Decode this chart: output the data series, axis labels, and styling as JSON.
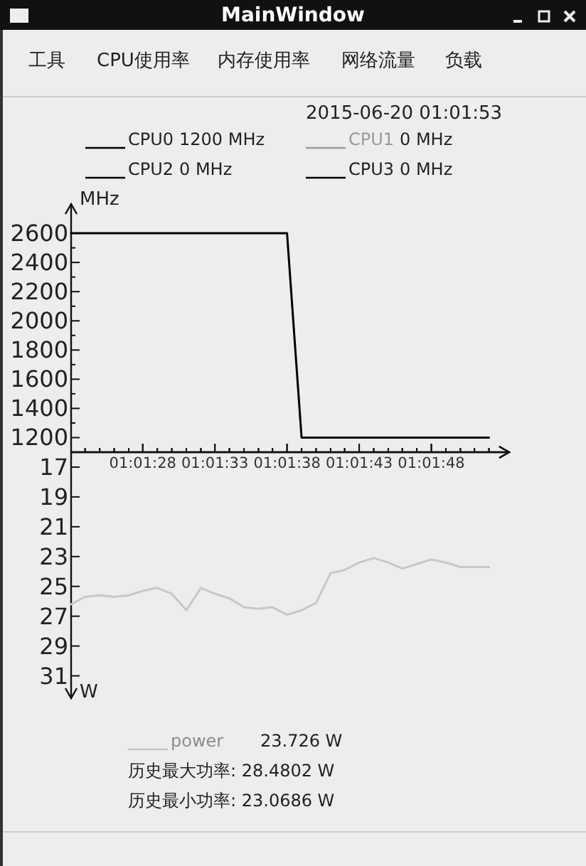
{
  "chart_data": [
    {
      "type": "line",
      "title": "MainWindow",
      "ylabel": "MHz",
      "annotations": [
        "工具",
        "CPU使用率",
        "内存使用率",
        "网络流量",
        "负载",
        "2015-06-20 01:01:53",
        "1200 MHz",
        "0     MHz",
        "0     MHz",
        "0     MHz"
      ],
      "xlim": [
        1.02306,
        1.0315
      ],
      "xticks": [
        {
          "value": 1.02333,
          "label": null
        },
        {
          "value": 1.02361,
          "label": null
        },
        {
          "value": 1.02389,
          "label": null
        },
        {
          "value": 1.02417,
          "label": null
        },
        {
          "value": 1.02444,
          "label": "01:01:28"
        },
        {
          "value": 1.02472,
          "label": null
        },
        {
          "value": 1.025,
          "label": null
        },
        {
          "value": 1.02528,
          "label": null
        },
        {
          "value": 1.02556,
          "label": null
        },
        {
          "value": 1.02583,
          "label": "01:01:33"
        },
        {
          "value": 1.02611,
          "label": null
        },
        {
          "value": 1.02639,
          "label": null
        },
        {
          "value": 1.02667,
          "label": null
        },
        {
          "value": 1.02694,
          "label": null
        },
        {
          "value": 1.02722,
          "label": "01:01:38"
        },
        {
          "value": 1.0275,
          "label": null
        },
        {
          "value": 1.02778,
          "label": null
        },
        {
          "value": 1.02806,
          "label": null
        },
        {
          "value": 1.02833,
          "label": null
        },
        {
          "value": 1.02861,
          "label": "01:01:43"
        },
        {
          "value": 1.02889,
          "label": null
        },
        {
          "value": 1.02917,
          "label": null
        },
        {
          "value": 1.02944,
          "label": null
        },
        {
          "value": 1.02972,
          "label": null
        },
        {
          "value": 1.03,
          "label": "01:01:48"
        },
        {
          "value": 1.03028,
          "label": null
        },
        {
          "value": 1.03056,
          "label": null
        },
        {
          "value": 1.03083,
          "label": null
        },
        {
          "value": 1.03111,
          "label": null
        }
      ],
      "ylim": [
        1100,
        2800
      ],
      "yticks": [
        1200,
        {
          "value": 1300,
          "label": null
        },
        1400,
        {
          "value": 1500,
          "label": null
        },
        1600,
        {
          "value": 1700,
          "label": null
        },
        1800,
        {
          "value": 1900,
          "label": null
        },
        2000,
        {
          "value": 2100,
          "label": null
        },
        2200,
        {
          "value": 2300,
          "label": null
        },
        2400,
        {
          "value": 2500,
          "label": null
        },
        2600
      ],
      "legend": "top",
      "series": [
        {
          "name": "CPU0",
          "color": "#000000",
          "x": [
            1.02306,
            1.02722,
            1.0275,
            1.03111
          ],
          "values": [
            2600,
            2600,
            1200,
            1200
          ]
        },
        {
          "name": "CPU1",
          "color": "#9a9a9a"
        },
        {
          "name": "CPU2",
          "color": "#000000"
        },
        {
          "name": "CPU3",
          "color": "#000000"
        }
      ]
    },
    {
      "type": "line",
      "ylabel": "W",
      "tick_labels": "y",
      "annotations": [
        "23.726   W",
        "历史最大功率: 28.4802  W",
        "历史最小功率: 23.0686  W"
      ],
      "xlim": [
        1.02306,
        1.0315
      ],
      "xticks": [
        {
          "value": 1.02333,
          "label": null
        },
        {
          "value": 1.02361,
          "label": null
        },
        {
          "value": 1.02389,
          "label": null
        },
        {
          "value": 1.02417,
          "label": null
        },
        1.02444,
        {
          "value": 1.02472,
          "label": null
        },
        {
          "value": 1.025,
          "label": null
        },
        {
          "value": 1.02528,
          "label": null
        },
        {
          "value": 1.02556,
          "label": null
        },
        1.02583,
        {
          "value": 1.02611,
          "label": null
        },
        {
          "value": 1.02639,
          "label": null
        },
        {
          "value": 1.02667,
          "label": null
        },
        {
          "value": 1.02694,
          "label": null
        },
        1.02722,
        {
          "value": 1.0275,
          "label": null
        },
        {
          "value": 1.02778,
          "label": null
        },
        {
          "value": 1.02806,
          "label": null
        },
        {
          "value": 1.02833,
          "label": null
        },
        1.02861,
        {
          "value": 1.02889,
          "label": null
        },
        {
          "value": 1.02917,
          "label": null
        },
        {
          "value": 1.02944,
          "label": null
        },
        {
          "value": 1.02972,
          "label": null
        },
        1.03,
        {
          "value": 1.03028,
          "label": null
        },
        {
          "value": 1.03056,
          "label": null
        },
        {
          "value": 1.03083,
          "label": null
        },
        {
          "value": 1.03111,
          "label": null
        }
      ],
      "ylim": [
        32.5,
        16
      ],
      "yticks": [
        17,
        19,
        21,
        23,
        25,
        27,
        29,
        31
      ],
      "legend": "bottom",
      "series": [
        {
          "name": "power",
          "color": "#c8c8c8",
          "x": [
            1.02306,
            1.02333,
            1.02361,
            1.02389,
            1.02417,
            1.02444,
            1.02472,
            1.025,
            1.02528,
            1.02556,
            1.02583,
            1.02611,
            1.02639,
            1.02667,
            1.02694,
            1.02722,
            1.0275,
            1.02778,
            1.02806,
            1.02833,
            1.02861,
            1.02889,
            1.02917,
            1.02944,
            1.02972,
            1.03,
            1.03028,
            1.03056,
            1.03111
          ],
          "values": [
            26.2,
            25.7,
            25.6,
            25.7,
            25.6,
            25.3,
            25.1,
            25.5,
            26.6,
            25.1,
            25.5,
            25.8,
            26.4,
            26.5,
            26.4,
            26.9,
            26.6,
            26.1,
            24.1,
            23.9,
            23.4,
            23.1,
            23.4,
            23.8,
            23.5,
            23.2,
            23.4,
            23.7,
            23.7
          ]
        }
      ]
    }
  ]
}
